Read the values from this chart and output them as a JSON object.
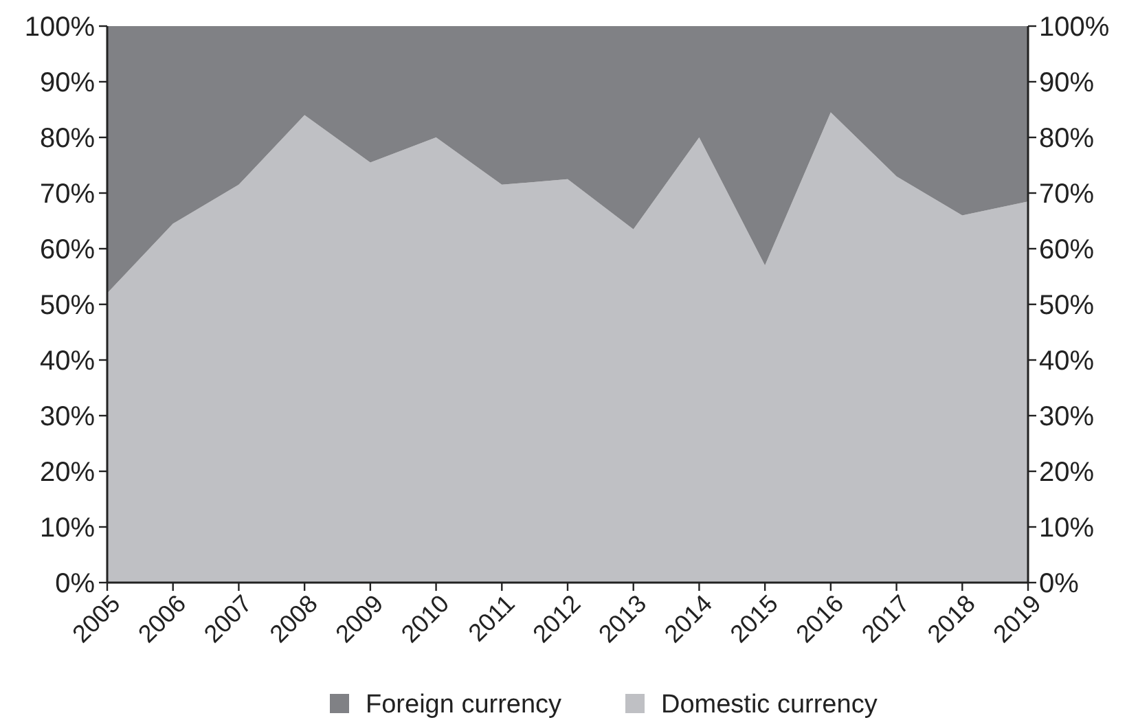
{
  "chart_data": {
    "type": "area",
    "stacked": true,
    "categories": [
      "2005",
      "2006",
      "2007",
      "2008",
      "2009",
      "2010",
      "2011",
      "2012",
      "2013",
      "2014",
      "2015",
      "2016",
      "2017",
      "2018",
      "2019"
    ],
    "series": [
      {
        "name": "Domestic currency",
        "color": "#bfc0c4",
        "values": [
          52,
          64.5,
          71.5,
          84,
          75.5,
          80,
          71.5,
          72.5,
          63.5,
          80,
          57,
          84.5,
          73,
          66,
          68.5
        ]
      },
      {
        "name": "Foreign currency",
        "color": "#808185",
        "values": [
          48,
          35.5,
          28.5,
          16,
          24.5,
          20,
          28.5,
          27.5,
          36.5,
          20,
          43,
          15.5,
          27,
          34,
          31.5
        ]
      }
    ],
    "ylim": [
      0,
      100
    ],
    "yticks": [
      {
        "value": 0,
        "label": "0%"
      },
      {
        "value": 10,
        "label": "10%"
      },
      {
        "value": 20,
        "label": "20%"
      },
      {
        "value": 30,
        "label": "30%"
      },
      {
        "value": 40,
        "label": "40%"
      },
      {
        "value": 50,
        "label": "50%"
      },
      {
        "value": 60,
        "label": "60%"
      },
      {
        "value": 70,
        "label": "70%"
      },
      {
        "value": 80,
        "label": "80%"
      },
      {
        "value": 90,
        "label": "90%"
      },
      {
        "value": 100,
        "label": "100%"
      }
    ],
    "y2lim": [
      0,
      100
    ],
    "y2ticks": [
      {
        "value": 0,
        "label": "0%"
      },
      {
        "value": 10,
        "label": "10%"
      },
      {
        "value": 20,
        "label": "20%"
      },
      {
        "value": 30,
        "label": "30%"
      },
      {
        "value": 40,
        "label": "40%"
      },
      {
        "value": 50,
        "label": "50%"
      },
      {
        "value": 60,
        "label": "60%"
      },
      {
        "value": 70,
        "label": "70%"
      },
      {
        "value": 80,
        "label": "80%"
      },
      {
        "value": 90,
        "label": "90%"
      },
      {
        "value": 100,
        "label": "100%"
      }
    ],
    "grid": false,
    "legend": "bottom"
  }
}
